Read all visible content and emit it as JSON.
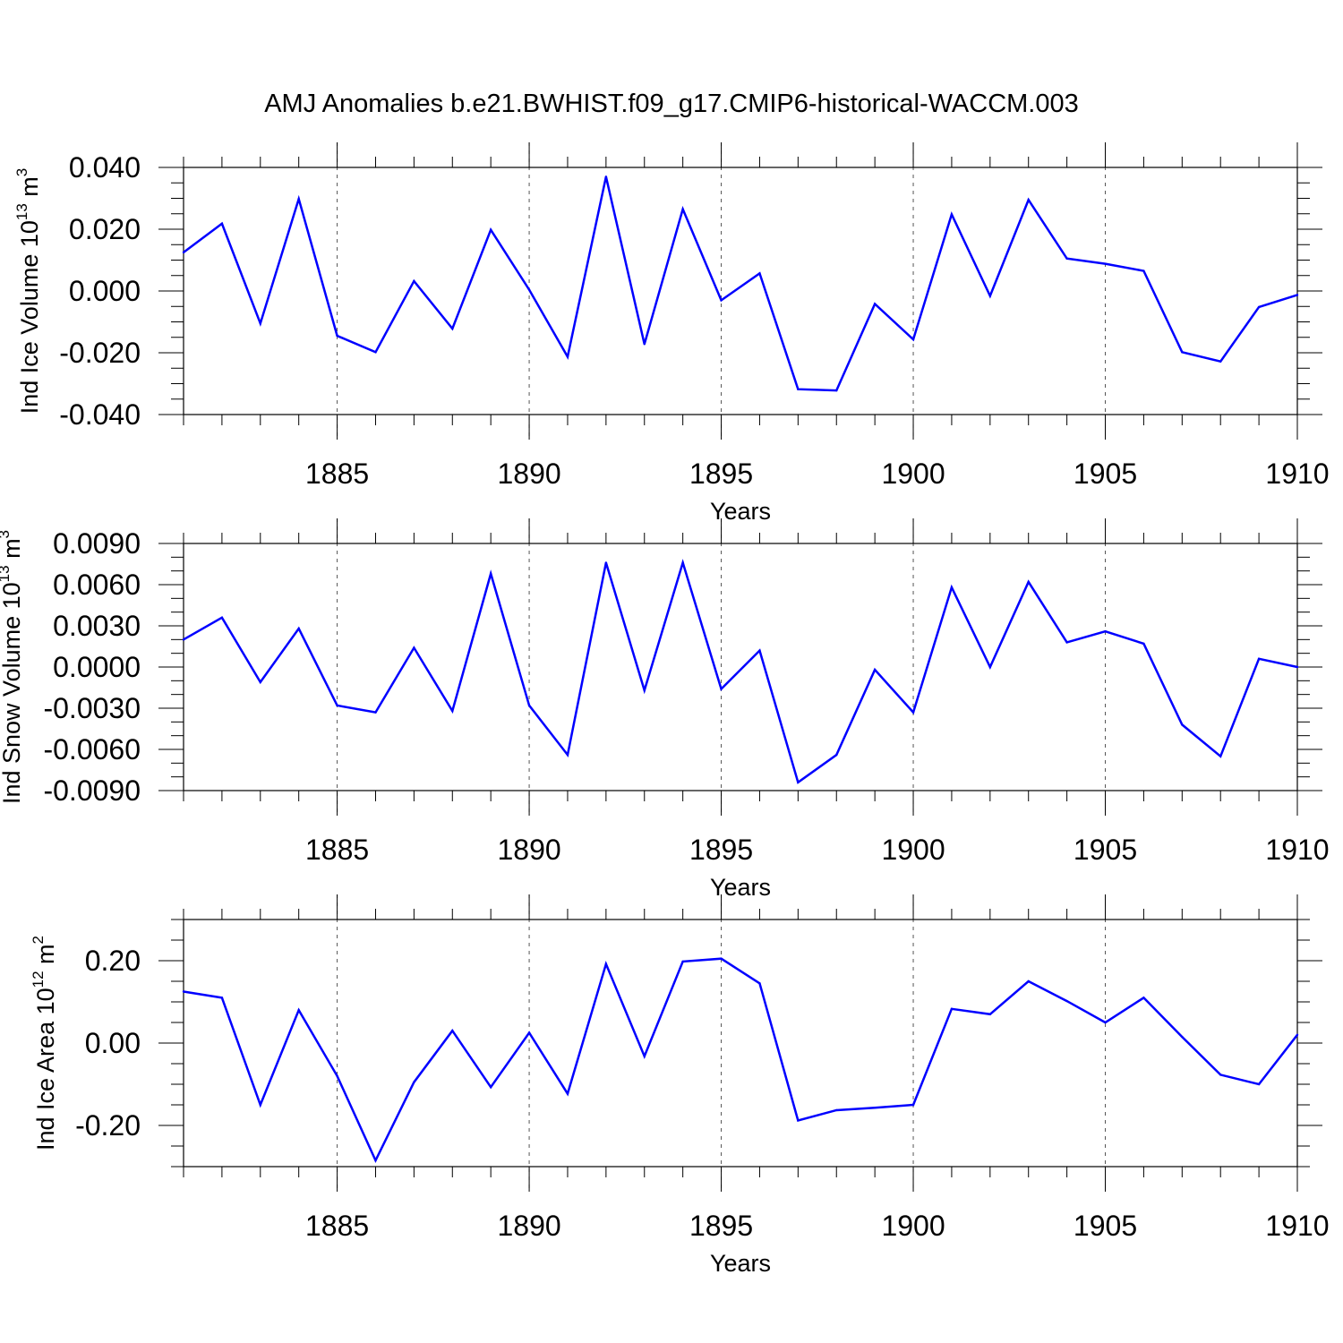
{
  "title": "AMJ Anomalies b.e21.BWHIST.f09_g17.CMIP6-historical-WACCM.003",
  "colors": {
    "line": "#0000ff",
    "axis": "#000000",
    "grid": "#555555"
  },
  "chart_data": [
    {
      "type": "line",
      "ylabel": {
        "base": "Ind Ice Volume 10",
        "exp": "13",
        "unit": " m",
        "unit_exp": "3"
      },
      "xlabel": "Years",
      "xlim": [
        1881,
        1910
      ],
      "ylim": [
        -0.04,
        0.04
      ],
      "xticks": [
        "1885",
        "1890",
        "1895",
        "1900",
        "1905",
        "1910"
      ],
      "xtick_values": [
        1885,
        1890,
        1895,
        1900,
        1905,
        1910
      ],
      "yticks": [
        "-0.040",
        "-0.020",
        "0.000",
        "0.020",
        "0.040"
      ],
      "ytick_values": [
        -0.04,
        -0.02,
        0.0,
        0.02,
        0.04
      ],
      "yminor_step": 0.005,
      "x": [
        1881,
        1882,
        1883,
        1884,
        1885,
        1886,
        1887,
        1888,
        1889,
        1890,
        1891,
        1892,
        1893,
        1894,
        1895,
        1896,
        1897,
        1898,
        1899,
        1900,
        1901,
        1902,
        1903,
        1904,
        1905,
        1906,
        1907,
        1908,
        1909,
        1910
      ],
      "values": [
        0.0125,
        0.0218,
        -0.0105,
        0.0298,
        -0.0145,
        -0.0198,
        0.0032,
        -0.0122,
        0.0198,
        0.0004,
        -0.0213,
        0.037,
        -0.0172,
        0.0265,
        -0.003,
        0.0057,
        -0.0318,
        -0.0322,
        -0.0042,
        -0.0157,
        0.0248,
        -0.0016,
        0.0295,
        0.0105,
        0.0088,
        0.0065,
        -0.0198,
        -0.0228,
        -0.0052,
        -0.0013
      ]
    },
    {
      "type": "line",
      "ylabel": {
        "base": "Ind Snow Volume 10",
        "exp": "13",
        "unit": " m",
        "unit_exp": "3"
      },
      "xlabel": "Years",
      "xlim": [
        1881,
        1910
      ],
      "ylim": [
        -0.009,
        0.009
      ],
      "xticks": [
        "1885",
        "1890",
        "1895",
        "1900",
        "1905",
        "1910"
      ],
      "xtick_values": [
        1885,
        1890,
        1895,
        1900,
        1905,
        1910
      ],
      "yticks": [
        "-0.0090",
        "-0.0060",
        "-0.0030",
        "0.0000",
        "0.0030",
        "0.0060",
        "0.0090"
      ],
      "ytick_values": [
        -0.009,
        -0.006,
        -0.003,
        0.0,
        0.003,
        0.006,
        0.009
      ],
      "yminor_step": 0.001,
      "x": [
        1881,
        1882,
        1883,
        1884,
        1885,
        1886,
        1887,
        1888,
        1889,
        1890,
        1891,
        1892,
        1893,
        1894,
        1895,
        1896,
        1897,
        1898,
        1899,
        1900,
        1901,
        1902,
        1903,
        1904,
        1905,
        1906,
        1907,
        1908,
        1909,
        1910
      ],
      "values": [
        0.002,
        0.0036,
        -0.0011,
        0.0028,
        -0.0028,
        -0.0033,
        0.0014,
        -0.0032,
        0.0068,
        -0.0028,
        -0.0064,
        0.0076,
        -0.0017,
        0.0076,
        -0.0016,
        0.0012,
        -0.0084,
        -0.0064,
        -0.0002,
        -0.0033,
        0.0058,
        0.0,
        0.0062,
        0.0018,
        0.0026,
        0.0017,
        -0.0042,
        -0.0065,
        0.0006,
        0.0
      ]
    },
    {
      "type": "line",
      "ylabel": {
        "base": "Ind Ice Area 10",
        "exp": "12",
        "unit": " m",
        "unit_exp": "2"
      },
      "xlabel": "Years",
      "xlim": [
        1881,
        1910
      ],
      "ylim": [
        -0.3,
        0.3
      ],
      "xticks": [
        "1885",
        "1890",
        "1895",
        "1900",
        "1905",
        "1910"
      ],
      "xtick_values": [
        1885,
        1890,
        1895,
        1900,
        1905,
        1910
      ],
      "yticks": [
        "-0.20",
        "0.00",
        "0.20"
      ],
      "ytick_values": [
        -0.2,
        0.0,
        0.2
      ],
      "yminor_step": 0.05,
      "x": [
        1881,
        1882,
        1883,
        1884,
        1885,
        1886,
        1887,
        1888,
        1889,
        1890,
        1891,
        1892,
        1893,
        1894,
        1895,
        1896,
        1897,
        1898,
        1899,
        1900,
        1901,
        1902,
        1903,
        1904,
        1905,
        1906,
        1907,
        1908,
        1909,
        1910
      ],
      "values": [
        0.125,
        0.11,
        -0.15,
        0.08,
        -0.08,
        -0.285,
        -0.095,
        0.03,
        -0.107,
        0.025,
        -0.123,
        0.192,
        -0.032,
        0.198,
        0.205,
        0.145,
        -0.188,
        -0.163,
        -0.157,
        -0.15,
        0.083,
        0.07,
        0.15,
        0.102,
        0.05,
        0.11,
        0.015,
        -0.077,
        -0.1,
        0.02
      ]
    }
  ]
}
